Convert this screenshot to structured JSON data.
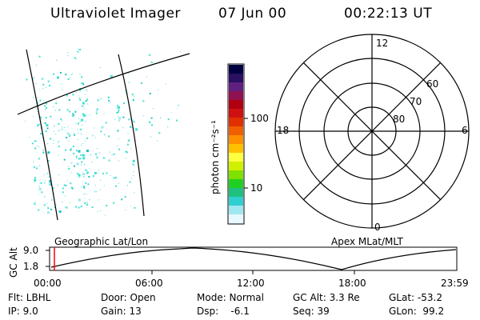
{
  "header": {
    "instrument": "Ultraviolet Imager",
    "date": "07 Jun 00",
    "time": "00:22:13 UT"
  },
  "colorbar": {
    "label": "photon cm⁻²s⁻¹",
    "ticks": [
      "100",
      "10"
    ],
    "colors": [
      "#000040",
      "#2a1060",
      "#602080",
      "#901050",
      "#b00010",
      "#d01010",
      "#e03000",
      "#f06000",
      "#ff9000",
      "#ffc000",
      "#ffff40",
      "#d0f000",
      "#80e000",
      "#20d020",
      "#20c080",
      "#30d0d0",
      "#a0e8f0",
      "#e8f8ff"
    ]
  },
  "left_panel": {
    "caption": "Geographic Lat/Lon",
    "speckle_color": "#40e0d0"
  },
  "polar_panel": {
    "caption": "Apex MLat/MLT",
    "mlt_labels": {
      "top": "12",
      "left": "18",
      "right": "6",
      "bottom": "0"
    },
    "lat_labels": [
      "60",
      "70",
      "80"
    ]
  },
  "altitude_plot": {
    "axis_label": "GC Alt",
    "y_ticks": [
      "9.0",
      "1.8"
    ],
    "x_ticks": [
      "00:00",
      "06:00",
      "12:00",
      "18:00",
      "23:59"
    ],
    "marker_color": "#ff0000"
  },
  "status": {
    "flt": "Flt: LBHL",
    "ip": "IP:  9.0",
    "door": "Door: Open",
    "gain": "Gain: 13",
    "mode": "Mode: Normal",
    "dsp": "Dsp:    -6.1",
    "gc_alt": "GC Alt: 3.3 Re",
    "seq": "Seq: 39",
    "glat": "GLat: -53.2",
    "glon": "GLon:  99.2"
  }
}
